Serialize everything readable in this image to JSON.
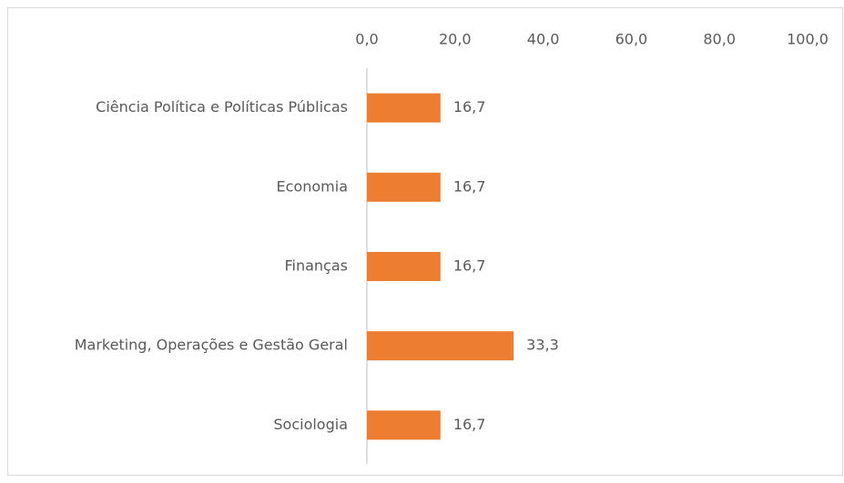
{
  "chart_data": {
    "type": "bar",
    "orientation": "horizontal",
    "categories": [
      "Ciência Política e Políticas Públicas",
      "Economia",
      "Finanças",
      "Marketing, Operações e Gestão Geral",
      "Sociologia"
    ],
    "values": [
      16.7,
      16.7,
      16.7,
      33.3,
      16.7
    ],
    "value_labels": [
      "16,7",
      "16,7",
      "16,7",
      "33,3",
      "16,7"
    ],
    "color": "#ed7d31",
    "xlim": [
      0,
      100
    ],
    "xticks": [
      {
        "value": 0,
        "label": "0,0"
      },
      {
        "value": 20,
        "label": "20,0"
      },
      {
        "value": 40,
        "label": "40,0"
      },
      {
        "value": 60,
        "label": "60,0"
      },
      {
        "value": 80,
        "label": "80,0"
      },
      {
        "value": 100,
        "label": "100,0"
      }
    ],
    "grid": false
  }
}
